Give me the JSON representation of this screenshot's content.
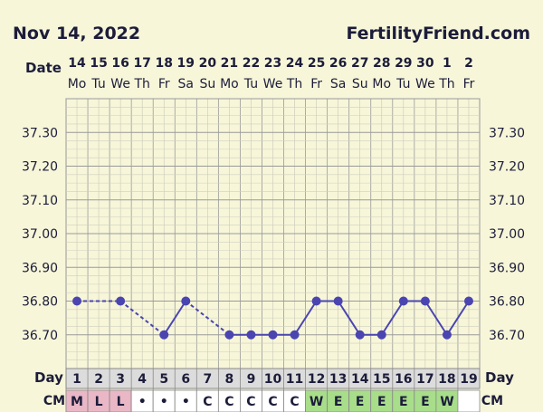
{
  "header": {
    "date": "Nov 14, 2022",
    "site": "FertilityFriend.com"
  },
  "labels": {
    "date": "Date",
    "day": "Day",
    "cm": "CM"
  },
  "chart_data": {
    "type": "line",
    "title": "",
    "xlabel": "",
    "ylabel": "",
    "ylim": [
      36.6,
      37.4
    ],
    "y_ticks": [
      "37.30",
      "37.20",
      "37.10",
      "37.00",
      "36.90",
      "36.80",
      "36.70"
    ],
    "dates": [
      "14",
      "15",
      "16",
      "17",
      "18",
      "19",
      "20",
      "21",
      "22",
      "23",
      "24",
      "25",
      "26",
      "27",
      "28",
      "29",
      "30",
      "1",
      "2"
    ],
    "weekdays": [
      "Mo",
      "Tu",
      "We",
      "Th",
      "Fr",
      "Sa",
      "Su",
      "Mo",
      "Tu",
      "We",
      "Th",
      "Fr",
      "Sa",
      "Su",
      "Mo",
      "Tu",
      "We",
      "Th",
      "Fr"
    ],
    "cycle_days": [
      "1",
      "2",
      "3",
      "4",
      "5",
      "6",
      "7",
      "8",
      "9",
      "10",
      "11",
      "12",
      "13",
      "14",
      "15",
      "16",
      "17",
      "18",
      "19"
    ],
    "cm": [
      "M",
      "L",
      "L",
      "•",
      "•",
      "•",
      "C",
      "C",
      "C",
      "C",
      "C",
      "W",
      "E",
      "E",
      "E",
      "E",
      "E",
      "W",
      ""
    ],
    "cm_colors": {
      "M": "#e9b7c5",
      "L": "#e9b7c5",
      "W": "#a8dd8a",
      "E": "#a8dd8a",
      "•": "#ffffff",
      "C": "#ffffff",
      "": "#ffffff"
    },
    "series": [
      {
        "values": [
          36.8,
          null,
          36.8,
          null,
          36.7,
          36.8,
          null,
          36.7,
          36.7,
          36.7,
          36.7,
          36.8,
          36.8,
          36.7,
          36.7,
          36.8,
          36.8,
          36.7,
          36.8
        ]
      }
    ],
    "line_color": "#4a45b0"
  }
}
